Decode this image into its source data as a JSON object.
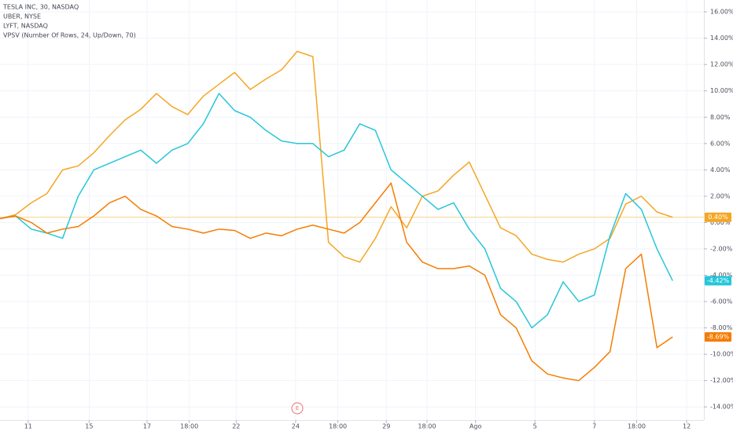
{
  "chart_data": {
    "type": "line",
    "legend_lines": [
      "TESLA INC, 30, NASDAQ",
      "UBER, NYSE",
      "LYFT, NASDAQ"
    ],
    "indicator": "VPSV (Number Of Rows, 24, Up/Down, 70)",
    "x": [
      0,
      1,
      2,
      3,
      4,
      5,
      6,
      7,
      8,
      9,
      10,
      11,
      12,
      13,
      14,
      15,
      16,
      17,
      18,
      19,
      20,
      21,
      22,
      23,
      24,
      25,
      26,
      27,
      28,
      29,
      30,
      31,
      32,
      33,
      34,
      35,
      36,
      37,
      38,
      39,
      40,
      41,
      42,
      43
    ],
    "xlim": [
      0,
      45
    ],
    "xticks": [
      {
        "value": 1.8,
        "label": "11"
      },
      {
        "value": 5.7,
        "label": "15"
      },
      {
        "value": 9.4,
        "label": "17"
      },
      {
        "value": 12.1,
        "label": "18:00"
      },
      {
        "value": 15.1,
        "label": "22"
      },
      {
        "value": 18.9,
        "label": "24"
      },
      {
        "value": 21.6,
        "label": "18:00"
      },
      {
        "value": 24.7,
        "label": "29"
      },
      {
        "value": 27.3,
        "label": "18:00"
      },
      {
        "value": 30.4,
        "label": "Ago"
      },
      {
        "value": 34.2,
        "label": "5"
      },
      {
        "value": 38,
        "label": "7"
      },
      {
        "value": 40.7,
        "label": "18:00"
      },
      {
        "value": 43.9,
        "label": "12"
      }
    ],
    "ylim": [
      -15,
      16.9
    ],
    "yticks": [
      {
        "value": 16,
        "label": "16.00%"
      },
      {
        "value": 14,
        "label": "14.00%"
      },
      {
        "value": 12,
        "label": "12.00%"
      },
      {
        "value": 10,
        "label": "10.00%"
      },
      {
        "value": 8,
        "label": "8.00%"
      },
      {
        "value": 6,
        "label": "6.00%"
      },
      {
        "value": 4,
        "label": "4.00%"
      },
      {
        "value": 2,
        "label": "2.00%"
      },
      {
        "value": 0,
        "label": "0.00%"
      },
      {
        "value": -2,
        "label": "-2.00%"
      },
      {
        "value": -4,
        "label": "-4.00%"
      },
      {
        "value": -6,
        "label": "-6.00%"
      },
      {
        "value": -8,
        "label": "-8.00%"
      },
      {
        "value": -10,
        "label": "-10.00%"
      },
      {
        "value": -12,
        "label": "-12.00%"
      },
      {
        "value": -14,
        "label": "-14.00%"
      }
    ],
    "grid": true,
    "event_marker": "E",
    "series": [
      {
        "name": "TESLA INC",
        "color": "#f5a623",
        "label": "0.40%",
        "values": [
          0.3,
          0.6,
          1.5,
          2.2,
          4,
          4.3,
          5.3,
          6.6,
          7.8,
          8.6,
          9.8,
          8.8,
          8.2,
          9.6,
          10.5,
          11.4,
          10.1,
          10.9,
          11.6,
          13,
          12.6,
          -1.5,
          -2.6,
          -3,
          -1.2,
          1.2,
          -0.4,
          2,
          2.4,
          3.6,
          4.6,
          2.1,
          -0.4,
          -1,
          -2.4,
          -2.8,
          -3,
          -2.4,
          -2,
          -1.2,
          1.4,
          2,
          0.8,
          0.4
        ]
      },
      {
        "name": "UBER",
        "color": "#26c6da",
        "label": "-4.42%",
        "values": [
          0.3,
          0.5,
          -0.5,
          -0.8,
          -1.2,
          2,
          4,
          4.5,
          5,
          5.5,
          4.5,
          5.5,
          6,
          7.5,
          9.8,
          8.5,
          8,
          7,
          6.2,
          6,
          6,
          5,
          5.5,
          7.5,
          7,
          4,
          3,
          2,
          1,
          1.5,
          -0.5,
          -2,
          -5,
          -6,
          -8,
          -7,
          -4.5,
          -6,
          -5.5,
          -1,
          2.2,
          1,
          -2,
          -4.42
        ]
      },
      {
        "name": "LYFT",
        "color": "#f57c00",
        "label": "-8.69%",
        "values": [
          0.3,
          0.5,
          0,
          -0.8,
          -0.5,
          -0.3,
          0.5,
          1.5,
          2,
          1,
          0.5,
          -0.3,
          -0.5,
          -0.8,
          -0.5,
          -0.6,
          -1.2,
          -0.8,
          -1,
          -0.5,
          -0.2,
          -0.5,
          -0.8,
          0,
          1.5,
          3,
          -1.5,
          -3,
          -3.5,
          -3.5,
          -3.3,
          -4,
          -7,
          -8,
          -10.5,
          -11.5,
          -11.8,
          -12,
          -11,
          -9.8,
          -3.5,
          -2.4,
          -9.5,
          -8.69
        ]
      }
    ]
  }
}
